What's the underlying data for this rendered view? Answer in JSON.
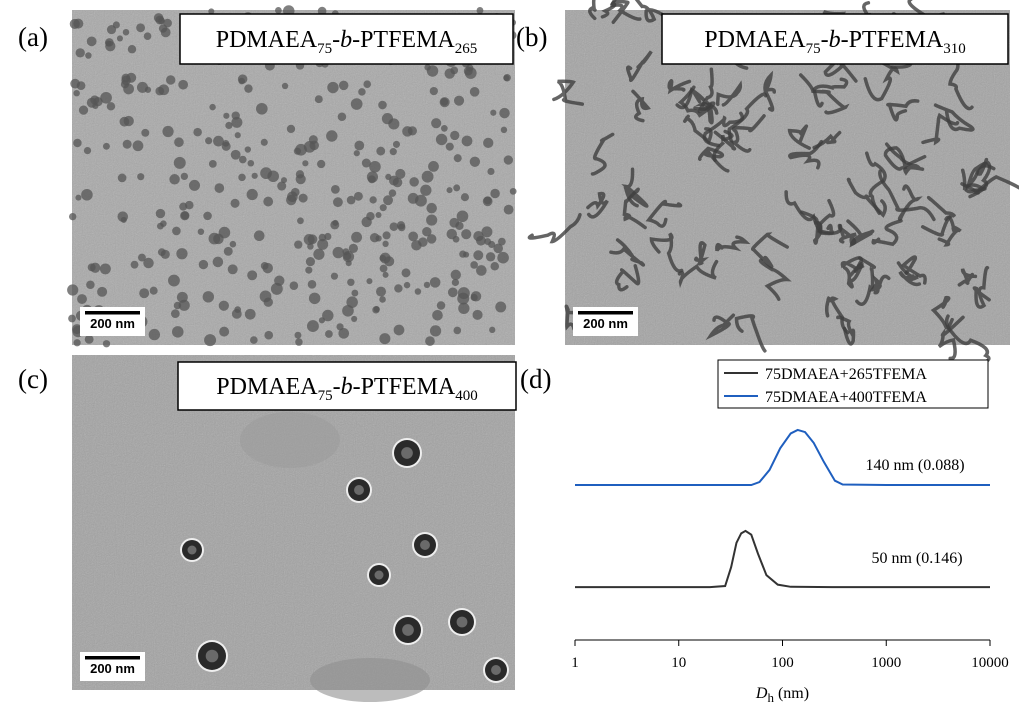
{
  "panels": [
    {
      "label": "(a)",
      "title_parts": [
        "PDMAEA",
        "75",
        "-",
        "b",
        "-PTFEMA",
        "265"
      ],
      "scale_bar": "200 nm"
    },
    {
      "label": "(b)",
      "title_parts": [
        "PDMAEA",
        "75",
        "-",
        "b",
        "-PTFEMA",
        "310"
      ],
      "scale_bar": "200 nm"
    },
    {
      "label": "(c)",
      "title_parts": [
        "PDMAEA",
        "75",
        "-",
        "b",
        "-PTFEMA",
        "400"
      ],
      "scale_bar": "200 nm"
    },
    {
      "label": "(d)"
    }
  ],
  "chart_data": {
    "type": "line",
    "xlabel_parts": [
      "D",
      "h",
      " (nm)"
    ],
    "xscale": "log",
    "xlim": [
      1,
      10000
    ],
    "xticks": [
      1,
      10,
      100,
      1000,
      10000
    ],
    "ylim": [
      0,
      1
    ],
    "legend": "upper right",
    "series": [
      {
        "name": "75DMAEA+265TFEMA",
        "color": "#333333",
        "x": [
          1,
          20,
          28,
          32,
          36,
          40,
          44,
          50,
          58,
          70,
          90,
          120,
          300,
          1000,
          10000
        ],
        "values": [
          0.196,
          0.196,
          0.2,
          0.27,
          0.36,
          0.395,
          0.404,
          0.39,
          0.32,
          0.24,
          0.205,
          0.197,
          0.196,
          0.196,
          0.196
        ]
      },
      {
        "name": "75DMAEA+400TFEMA",
        "color": "#1f5fbf",
        "x": [
          1,
          50,
          60,
          75,
          95,
          120,
          140,
          165,
          200,
          250,
          320,
          380,
          1000,
          10000
        ],
        "values": [
          0.574,
          0.574,
          0.585,
          0.63,
          0.71,
          0.765,
          0.778,
          0.77,
          0.73,
          0.66,
          0.59,
          0.576,
          0.574,
          0.574
        ]
      }
    ],
    "annotations": [
      "50 nm (0.146)",
      "140 nm (0.088)"
    ]
  }
}
